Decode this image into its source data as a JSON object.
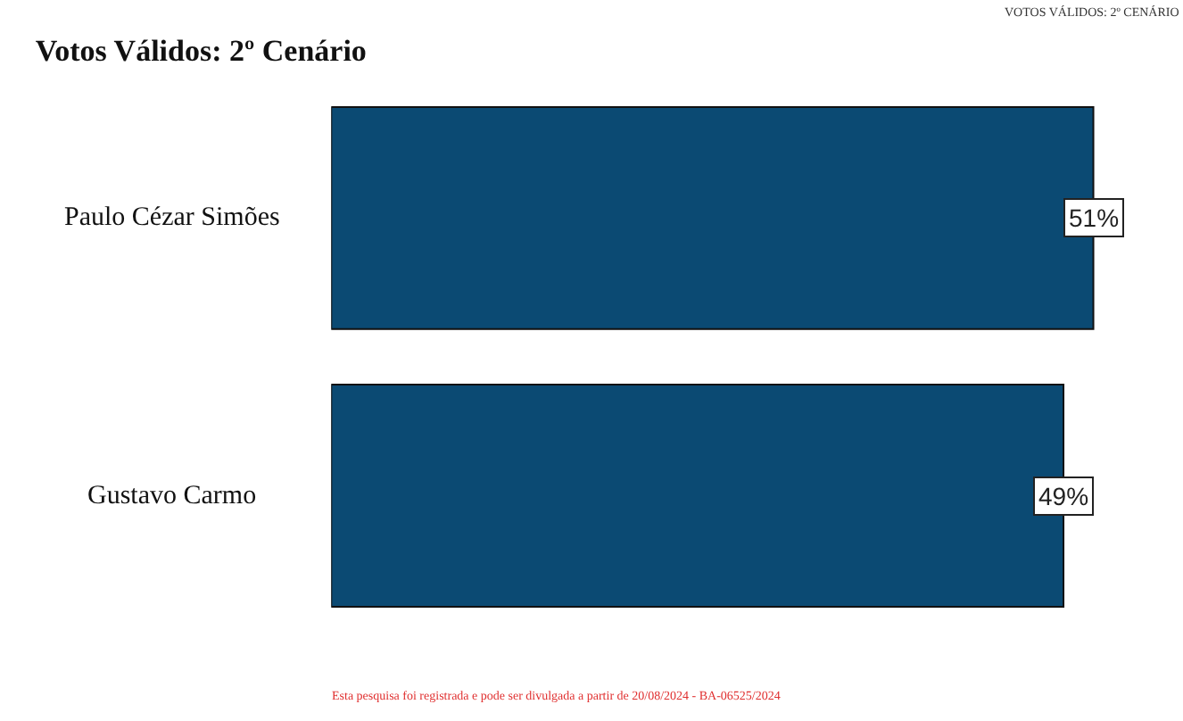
{
  "chart_data": {
    "type": "bar",
    "orientation": "horizontal",
    "title": "Votos Válidos: 2º Cenário",
    "subtitle": "VOTOS VÁLIDOS: 2º CENÁRIO",
    "categories": [
      "Paulo Cézar Simões",
      "Gustavo Carmo"
    ],
    "values": [
      51,
      49
    ],
    "value_labels": [
      "51%",
      "49%"
    ],
    "color": "#0b4a73",
    "annotations": [
      "Esta pesquisa foi registrada e pode ser divulgada a partir de 20/08/2024 - BA-06525/2024"
    ]
  }
}
